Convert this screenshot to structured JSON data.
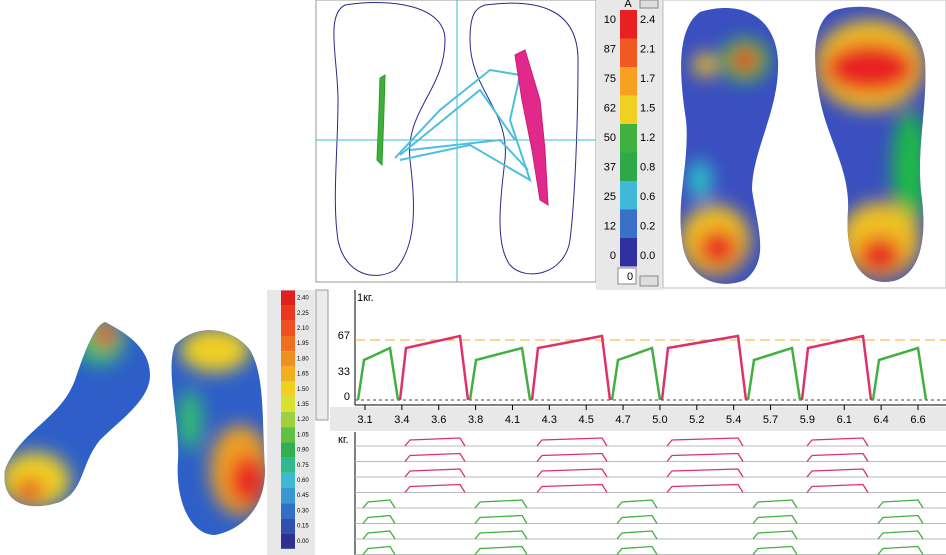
{
  "pressure_scale": {
    "header": "A",
    "left_labels": [
      "10",
      "87",
      "75",
      "62",
      "50",
      "37",
      "25",
      "12",
      "0"
    ],
    "right_labels": [
      "2.4",
      "2.1",
      "1.7",
      "1.5",
      "1.2",
      "0.8",
      "0.6",
      "0.2",
      "0.0"
    ],
    "bottom": "0"
  },
  "mini_scale": {
    "labels": [
      "2.40",
      "2.25",
      "2.10",
      "1.95",
      "1.80",
      "1.65",
      "1.50",
      "1.35",
      "1.20",
      "1.05",
      "0.90",
      "0.75",
      "0.60",
      "0.45",
      "0.30",
      "0.15",
      "0.00"
    ]
  },
  "force_graph": {
    "unit": "1кг.",
    "y_labels": [
      "67",
      "33",
      "0"
    ],
    "x_labels": [
      "3.1",
      "3.4",
      "3.6",
      "3.8",
      "4.1",
      "4.3",
      "4.5",
      "4.7",
      "5.0",
      "5.2",
      "5.4",
      "5.7",
      "5.9",
      "6.1",
      "6.4",
      "6.6"
    ]
  },
  "channel_graph": {
    "unit": "кг."
  }
}
